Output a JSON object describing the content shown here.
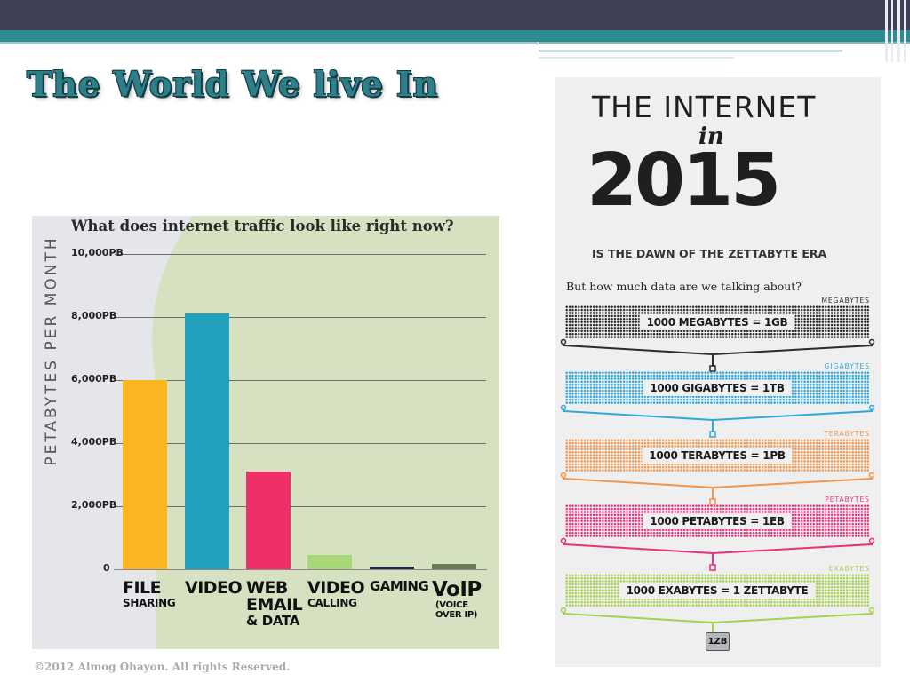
{
  "slide": {
    "title": "The World We live In",
    "footer": "©2012 Almog Ohayon. All rights Reserved."
  },
  "colors": {
    "top_band": "#3f4156",
    "teal_band": "#2f8a91",
    "title_color": "#2e7f8a"
  },
  "chart_data": {
    "type": "bar",
    "title": "What does internet traffic look like right now?",
    "ylabel": "PETABYTES PER MONTH",
    "ylim": [
      0,
      10000
    ],
    "yticks": [
      "0",
      "2,000PB",
      "4,000PB",
      "6,000PB",
      "8,000PB",
      "10,000PB"
    ],
    "categories": [
      "FILE SHARING",
      "VIDEO",
      "WEB EMAIL & DATA",
      "VIDEO CALLING",
      "GAMING",
      "VoIP (VOICE OVER IP)"
    ],
    "category_labels": [
      {
        "main": "FILE",
        "sub": "SHARING"
      },
      {
        "main": "VIDEO",
        "sub": ""
      },
      {
        "main": "WEB",
        "sub": "EMAIL",
        "sub2": "& DATA"
      },
      {
        "main": "VIDEO",
        "sub": "CALLING"
      },
      {
        "main": "GAMING",
        "sub": ""
      },
      {
        "main": "VoIP",
        "sub": "(VOICE",
        "sub2": "OVER IP)"
      }
    ],
    "values": [
      6000,
      8100,
      3100,
      450,
      80,
      160
    ],
    "bar_colors": [
      "#fbb520",
      "#23a0bd",
      "#ee2f68",
      "#a8d779",
      "#1f2a4a",
      "#6b7a57"
    ],
    "grid": true,
    "legend": "none"
  },
  "infographic": {
    "heading": "THE INTERNET",
    "in": "in",
    "year": "2015",
    "subtitle": "IS THE DAWN OF THE ZETTABYTE ERA",
    "question": "But how much data are we talking about?",
    "rows": [
      {
        "unit": "MEGABYTES",
        "equation": "1000 MEGABYTES = 1GB",
        "color": "#2b2b2b"
      },
      {
        "unit": "GIGABYTES",
        "equation": "1000 GIGABYTES = 1TB",
        "color": "#2ea8dc"
      },
      {
        "unit": "TERABYTES",
        "equation": "1000 TERABYTES = 1PB",
        "color": "#f0954a"
      },
      {
        "unit": "PETABYTES",
        "equation": "1000 PETABYTES = 1EB",
        "color": "#ec2f7e"
      },
      {
        "unit": "EXABYTES",
        "equation": "1000 EXABYTES = 1 ZETTABYTE",
        "color": "#a6d14d"
      }
    ],
    "final": "1ZB"
  }
}
